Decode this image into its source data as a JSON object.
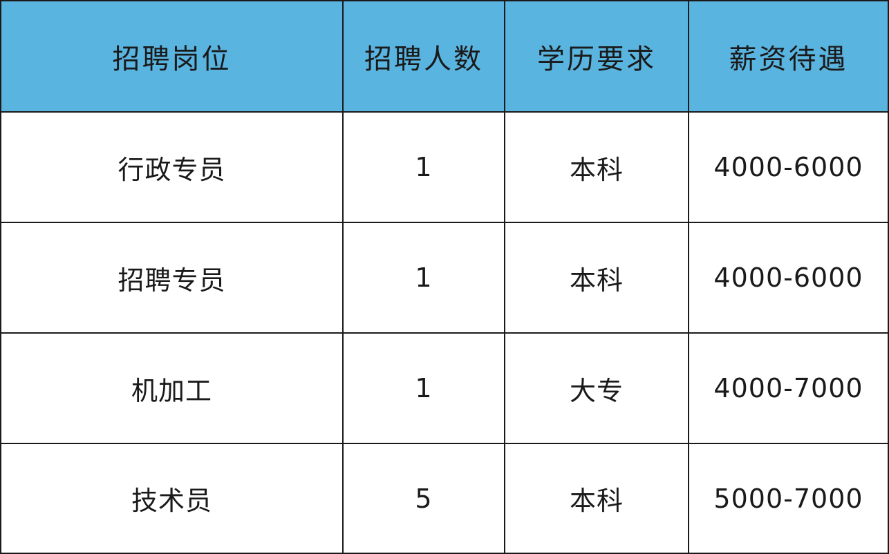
{
  "colors": {
    "header_bg": "#5ab4e0",
    "border": "#1a1a1a"
  },
  "headers": [
    "招聘岗位",
    "招聘人数",
    "学历要求",
    "薪资待遇"
  ],
  "rows": [
    [
      "行政专员",
      "1",
      "本科",
      "4000-6000"
    ],
    [
      "招聘专员",
      "1",
      "本科",
      "4000-6000"
    ],
    [
      "机加工",
      "1",
      "大专",
      "4000-7000"
    ],
    [
      "技术员",
      "5",
      "本科",
      "5000-7000"
    ]
  ]
}
